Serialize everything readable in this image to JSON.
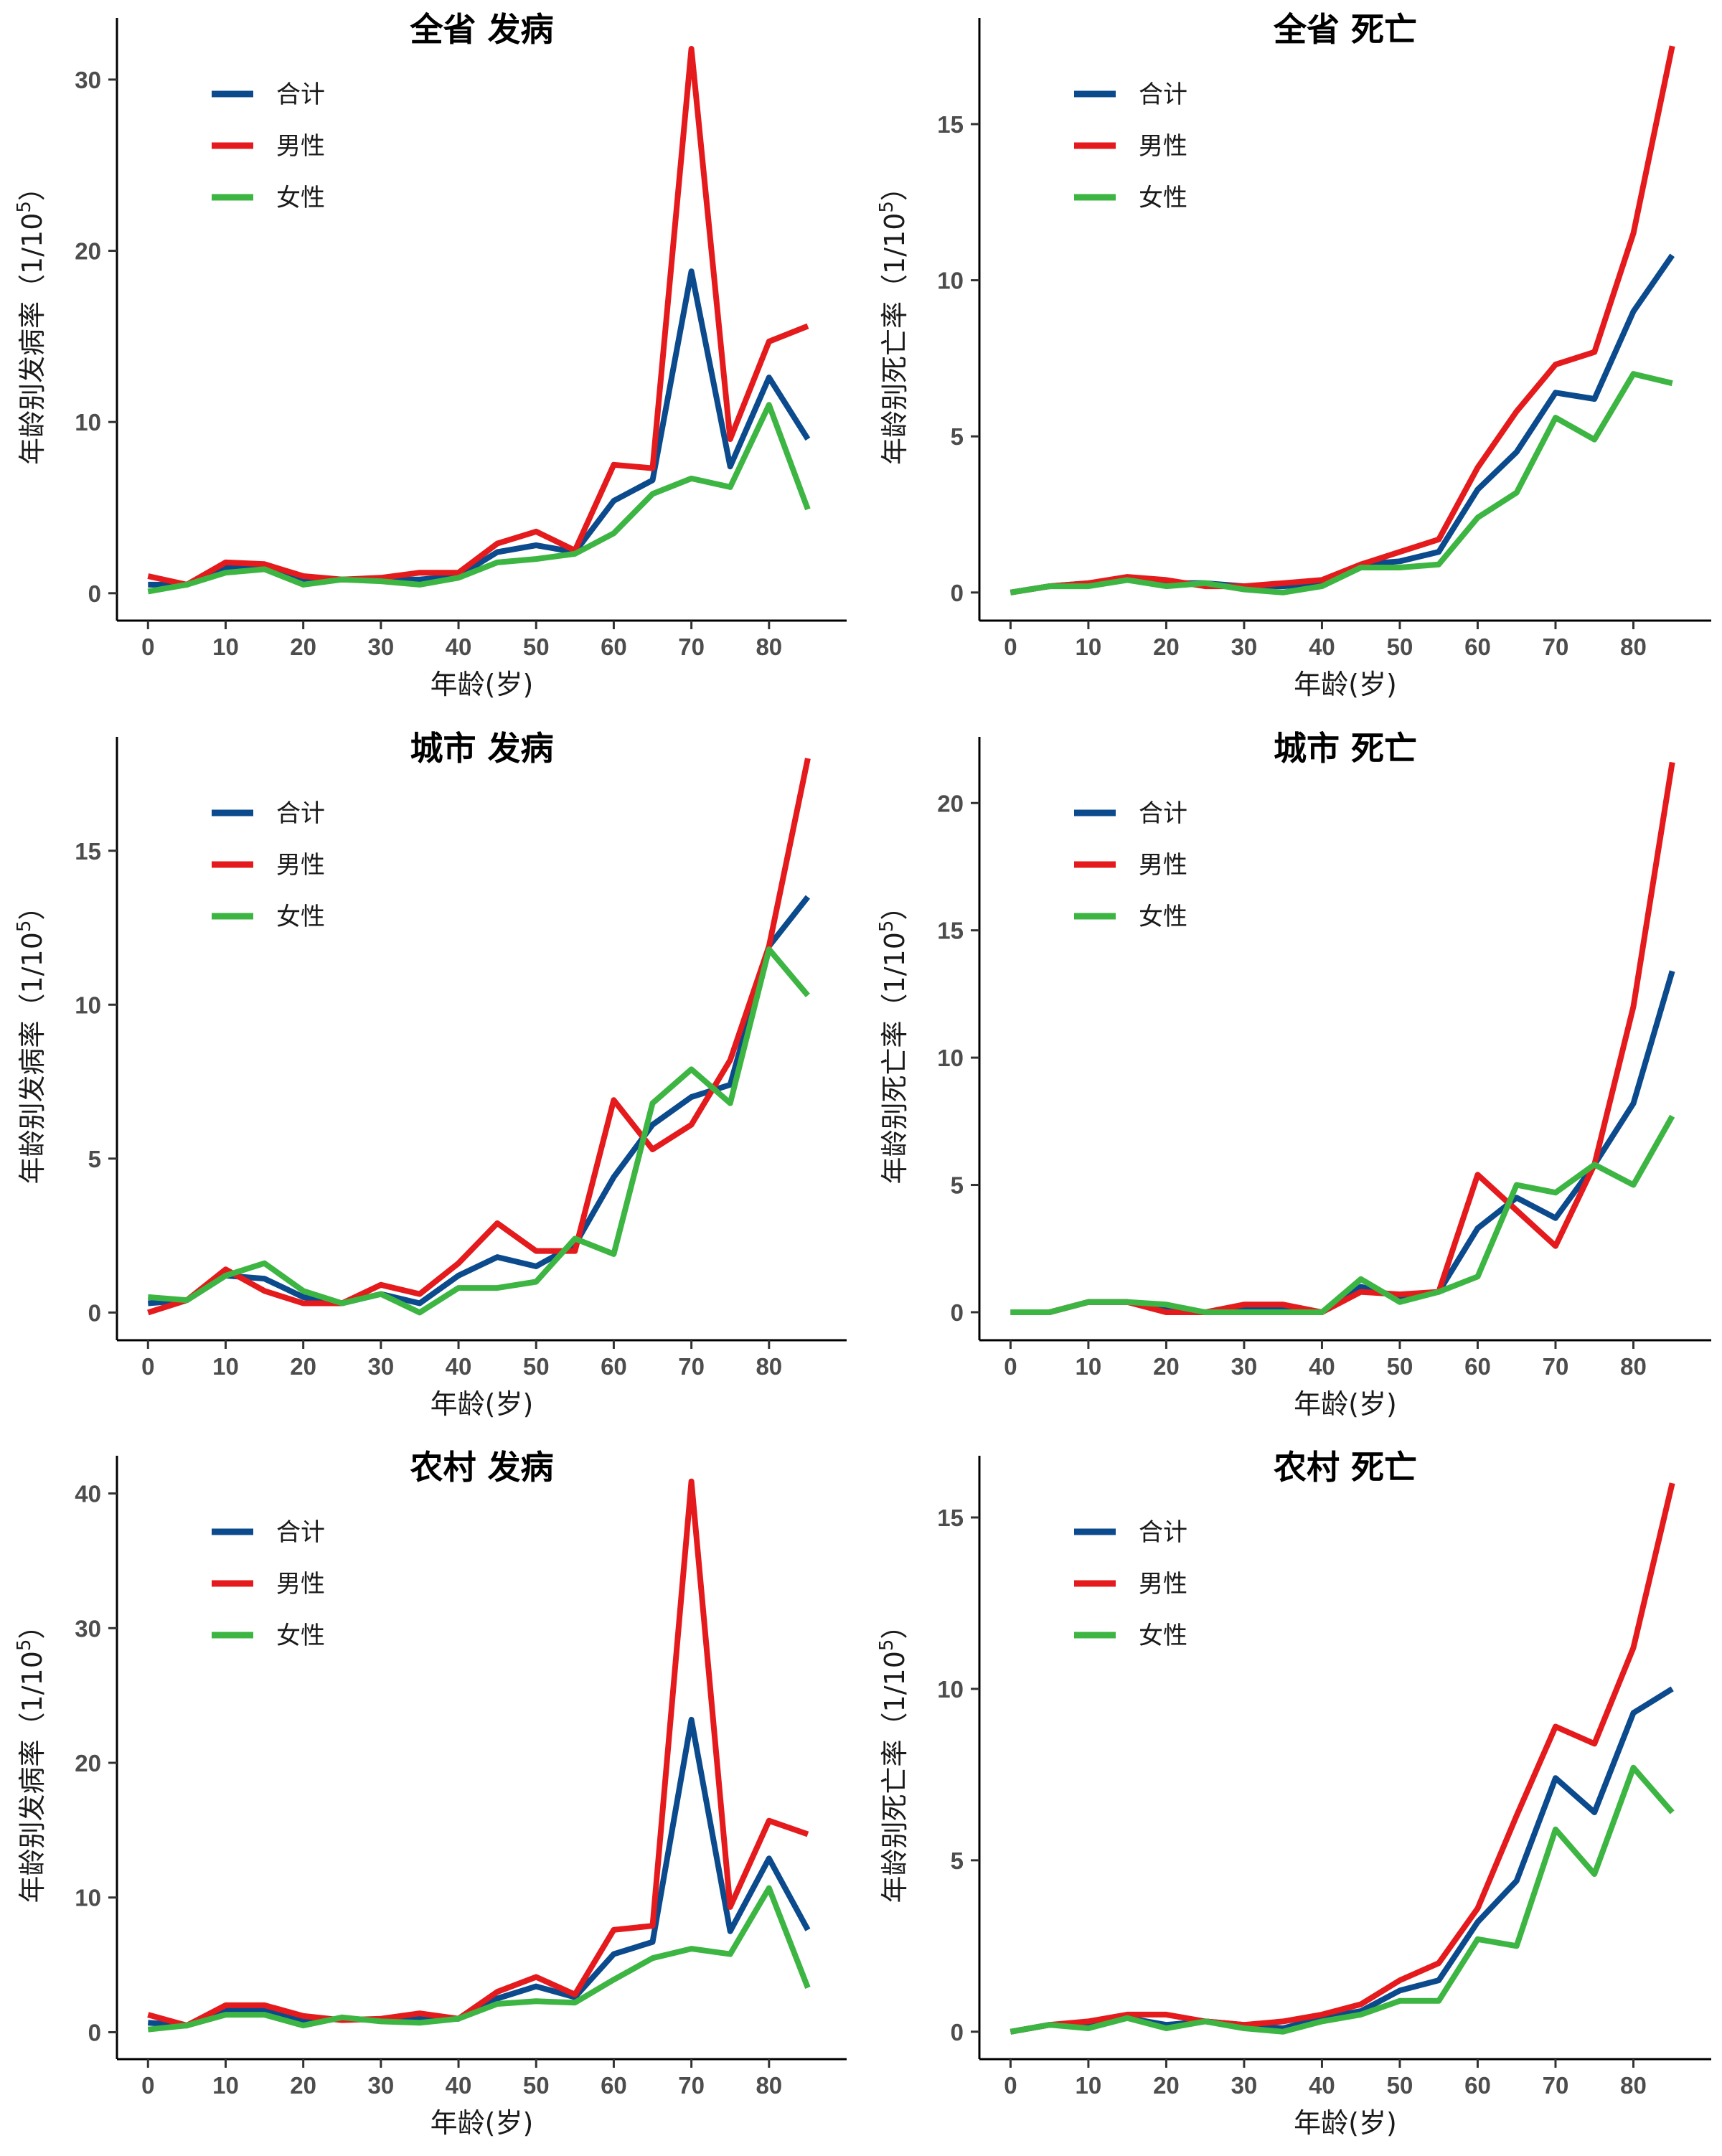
{
  "chart_data": [
    {
      "type": "line",
      "title": "全省 发病",
      "xlabel": "年龄(岁)",
      "ylabel": "年龄别发病率（1/10",
      "ylabel_sup": "5",
      "ylabel_close": "）",
      "x": [
        0,
        5,
        10,
        15,
        20,
        25,
        30,
        35,
        40,
        45,
        50,
        55,
        60,
        65,
        70,
        75,
        80,
        85
      ],
      "xlim": [
        -4,
        90
      ],
      "xticks": [
        0,
        10,
        20,
        30,
        40,
        50,
        60,
        70,
        80
      ],
      "ylim": [
        -1.6,
        33.6
      ],
      "yticks": [
        0,
        10,
        20,
        30
      ],
      "series": [
        {
          "name": "合计",
          "color": "#0b4a8c",
          "values": [
            0.5,
            0.5,
            1.5,
            1.5,
            0.8,
            0.8,
            0.8,
            0.8,
            1.0,
            2.4,
            2.8,
            2.4,
            5.4,
            6.6,
            18.8,
            7.4,
            12.6,
            9.0
          ]
        },
        {
          "name": "男性",
          "color": "#e41a1c",
          "values": [
            1.0,
            0.5,
            1.8,
            1.7,
            1.0,
            0.8,
            0.9,
            1.2,
            1.2,
            2.9,
            3.6,
            2.5,
            7.5,
            7.3,
            31.8,
            9.0,
            14.7,
            15.6
          ]
        },
        {
          "name": "女性",
          "color": "#3db543",
          "values": [
            0.1,
            0.5,
            1.2,
            1.4,
            0.5,
            0.8,
            0.7,
            0.5,
            0.9,
            1.8,
            2.0,
            2.3,
            3.5,
            5.8,
            6.7,
            6.2,
            11.0,
            4.9
          ]
        }
      ]
    },
    {
      "type": "line",
      "title": "全省 死亡",
      "xlabel": "年龄(岁)",
      "ylabel": "年龄别死亡率（1/10",
      "ylabel_sup": "5",
      "ylabel_close": "）",
      "x": [
        0,
        5,
        10,
        15,
        20,
        25,
        30,
        35,
        40,
        45,
        50,
        55,
        60,
        65,
        70,
        75,
        80,
        85
      ],
      "xlim": [
        -4,
        90
      ],
      "xticks": [
        0,
        10,
        20,
        30,
        40,
        50,
        60,
        70,
        80
      ],
      "ylim": [
        -0.9,
        18.4
      ],
      "yticks": [
        0,
        5,
        10,
        15
      ],
      "series": [
        {
          "name": "合计",
          "color": "#0b4a8c",
          "values": [
            0.0,
            0.2,
            0.3,
            0.4,
            0.3,
            0.3,
            0.2,
            0.2,
            0.3,
            0.9,
            1.0,
            1.3,
            3.3,
            4.5,
            6.4,
            6.2,
            9.0,
            10.8
          ]
        },
        {
          "name": "男性",
          "color": "#e41a1c",
          "values": [
            0.0,
            0.2,
            0.3,
            0.5,
            0.4,
            0.2,
            0.2,
            0.3,
            0.4,
            0.9,
            1.3,
            1.7,
            4.0,
            5.8,
            7.3,
            7.7,
            11.5,
            17.5
          ]
        },
        {
          "name": "女性",
          "color": "#3db543",
          "values": [
            0.0,
            0.2,
            0.2,
            0.4,
            0.2,
            0.3,
            0.1,
            0.0,
            0.2,
            0.8,
            0.8,
            0.9,
            2.4,
            3.2,
            5.6,
            4.9,
            7.0,
            6.7
          ]
        }
      ]
    },
    {
      "type": "line",
      "title": "城市 发病",
      "xlabel": "年龄(岁)",
      "ylabel": "年龄别发病率（1/10",
      "ylabel_sup": "5",
      "ylabel_close": "）",
      "x": [
        0,
        5,
        10,
        15,
        20,
        25,
        30,
        35,
        40,
        45,
        50,
        55,
        60,
        65,
        70,
        75,
        80,
        85
      ],
      "xlim": [
        -4,
        90
      ],
      "xticks": [
        0,
        10,
        20,
        30,
        40,
        50,
        60,
        70,
        80
      ],
      "ylim": [
        -0.9,
        18.7
      ],
      "yticks": [
        0,
        5,
        10,
        15
      ],
      "series": [
        {
          "name": "合计",
          "color": "#0b4a8c",
          "values": [
            0.3,
            0.4,
            1.2,
            1.1,
            0.5,
            0.3,
            0.6,
            0.3,
            1.2,
            1.8,
            1.5,
            2.2,
            4.4,
            6.1,
            7.0,
            7.4,
            11.9,
            13.5
          ]
        },
        {
          "name": "男性",
          "color": "#e41a1c",
          "values": [
            0.0,
            0.4,
            1.4,
            0.7,
            0.3,
            0.3,
            0.9,
            0.6,
            1.6,
            2.9,
            2.0,
            2.0,
            6.9,
            5.3,
            6.1,
            8.2,
            11.9,
            18.0
          ]
        },
        {
          "name": "女性",
          "color": "#3db543",
          "values": [
            0.5,
            0.4,
            1.2,
            1.6,
            0.7,
            0.3,
            0.6,
            0.0,
            0.8,
            0.8,
            1.0,
            2.4,
            1.9,
            6.8,
            7.9,
            6.8,
            11.8,
            10.3
          ]
        }
      ]
    },
    {
      "type": "line",
      "title": "城市 死亡",
      "xlabel": "年龄(岁)",
      "ylabel": "年龄别死亡率（1/10",
      "ylabel_sup": "5",
      "ylabel_close": "）",
      "x": [
        0,
        5,
        10,
        15,
        20,
        25,
        30,
        35,
        40,
        45,
        50,
        55,
        60,
        65,
        70,
        75,
        80,
        85
      ],
      "xlim": [
        -4,
        90
      ],
      "xticks": [
        0,
        10,
        20,
        30,
        40,
        50,
        60,
        70,
        80
      ],
      "ylim": [
        -1.1,
        22.6
      ],
      "yticks": [
        0,
        5,
        10,
        15,
        20
      ],
      "series": [
        {
          "name": "合计",
          "color": "#0b4a8c",
          "values": [
            0.0,
            0.0,
            0.4,
            0.4,
            0.2,
            0.0,
            0.1,
            0.1,
            0.0,
            1.0,
            0.6,
            0.8,
            3.3,
            4.5,
            3.7,
            5.8,
            8.2,
            13.4
          ]
        },
        {
          "name": "男性",
          "color": "#e41a1c",
          "values": [
            0.0,
            0.0,
            0.4,
            0.4,
            0.0,
            0.0,
            0.3,
            0.3,
            0.0,
            0.8,
            0.7,
            0.8,
            5.4,
            4.0,
            2.6,
            5.8,
            12.0,
            21.6
          ]
        },
        {
          "name": "女性",
          "color": "#3db543",
          "values": [
            0.0,
            0.0,
            0.4,
            0.4,
            0.3,
            0.0,
            0.0,
            0.0,
            0.0,
            1.3,
            0.4,
            0.8,
            1.4,
            5.0,
            4.7,
            5.8,
            5.0,
            7.7
          ]
        }
      ]
    },
    {
      "type": "line",
      "title": "农村 发病",
      "xlabel": "年龄(岁)",
      "ylabel": "年龄别发病率（1/10",
      "ylabel_sup": "5",
      "ylabel_close": "）",
      "x": [
        0,
        5,
        10,
        15,
        20,
        25,
        30,
        35,
        40,
        45,
        50,
        55,
        60,
        65,
        70,
        75,
        80,
        85
      ],
      "xlim": [
        -4,
        90
      ],
      "xticks": [
        0,
        10,
        20,
        30,
        40,
        50,
        60,
        70,
        80
      ],
      "ylim": [
        -2.0,
        42.8
      ],
      "yticks": [
        0,
        10,
        20,
        30,
        40
      ],
      "series": [
        {
          "name": "合计",
          "color": "#0b4a8c",
          "values": [
            0.7,
            0.5,
            1.6,
            1.7,
            0.8,
            1.0,
            0.9,
            1.0,
            1.0,
            2.5,
            3.4,
            2.6,
            5.8,
            6.7,
            23.2,
            7.5,
            12.9,
            7.6
          ]
        },
        {
          "name": "男性",
          "color": "#e41a1c",
          "values": [
            1.3,
            0.5,
            2.0,
            2.0,
            1.2,
            0.9,
            1.0,
            1.4,
            1.0,
            3.0,
            4.1,
            2.8,
            7.6,
            7.9,
            40.9,
            9.3,
            15.7,
            14.7
          ]
        },
        {
          "name": "女性",
          "color": "#3db543",
          "values": [
            0.2,
            0.5,
            1.3,
            1.3,
            0.5,
            1.1,
            0.8,
            0.7,
            1.0,
            2.1,
            2.3,
            2.2,
            3.9,
            5.5,
            6.2,
            5.8,
            10.7,
            3.3
          ]
        }
      ]
    },
    {
      "type": "line",
      "title": "农村 死亡",
      "xlabel": "年龄(岁)",
      "ylabel": "年龄别死亡率（1/10",
      "ylabel_sup": "5",
      "ylabel_close": "）",
      "x": [
        0,
        5,
        10,
        15,
        20,
        25,
        30,
        35,
        40,
        45,
        50,
        55,
        60,
        65,
        70,
        75,
        80,
        85
      ],
      "xlim": [
        -4,
        90
      ],
      "xticks": [
        0,
        10,
        20,
        30,
        40,
        50,
        60,
        70,
        80
      ],
      "ylim": [
        -0.8,
        16.8
      ],
      "yticks": [
        0,
        5,
        10,
        15
      ],
      "series": [
        {
          "name": "合计",
          "color": "#0b4a8c",
          "values": [
            0.0,
            0.2,
            0.2,
            0.4,
            0.2,
            0.3,
            0.2,
            0.1,
            0.4,
            0.6,
            1.2,
            1.5,
            3.2,
            4.4,
            7.4,
            6.4,
            9.3,
            10.0
          ]
        },
        {
          "name": "男性",
          "color": "#e41a1c",
          "values": [
            0.0,
            0.2,
            0.3,
            0.5,
            0.5,
            0.3,
            0.2,
            0.3,
            0.5,
            0.8,
            1.5,
            2.0,
            3.6,
            6.3,
            8.9,
            8.4,
            11.2,
            16.0
          ]
        },
        {
          "name": "女性",
          "color": "#3db543",
          "values": [
            0.0,
            0.2,
            0.1,
            0.4,
            0.1,
            0.3,
            0.1,
            0.0,
            0.3,
            0.5,
            0.9,
            0.9,
            2.7,
            2.5,
            5.9,
            4.6,
            7.7,
            6.4
          ]
        }
      ]
    }
  ]
}
